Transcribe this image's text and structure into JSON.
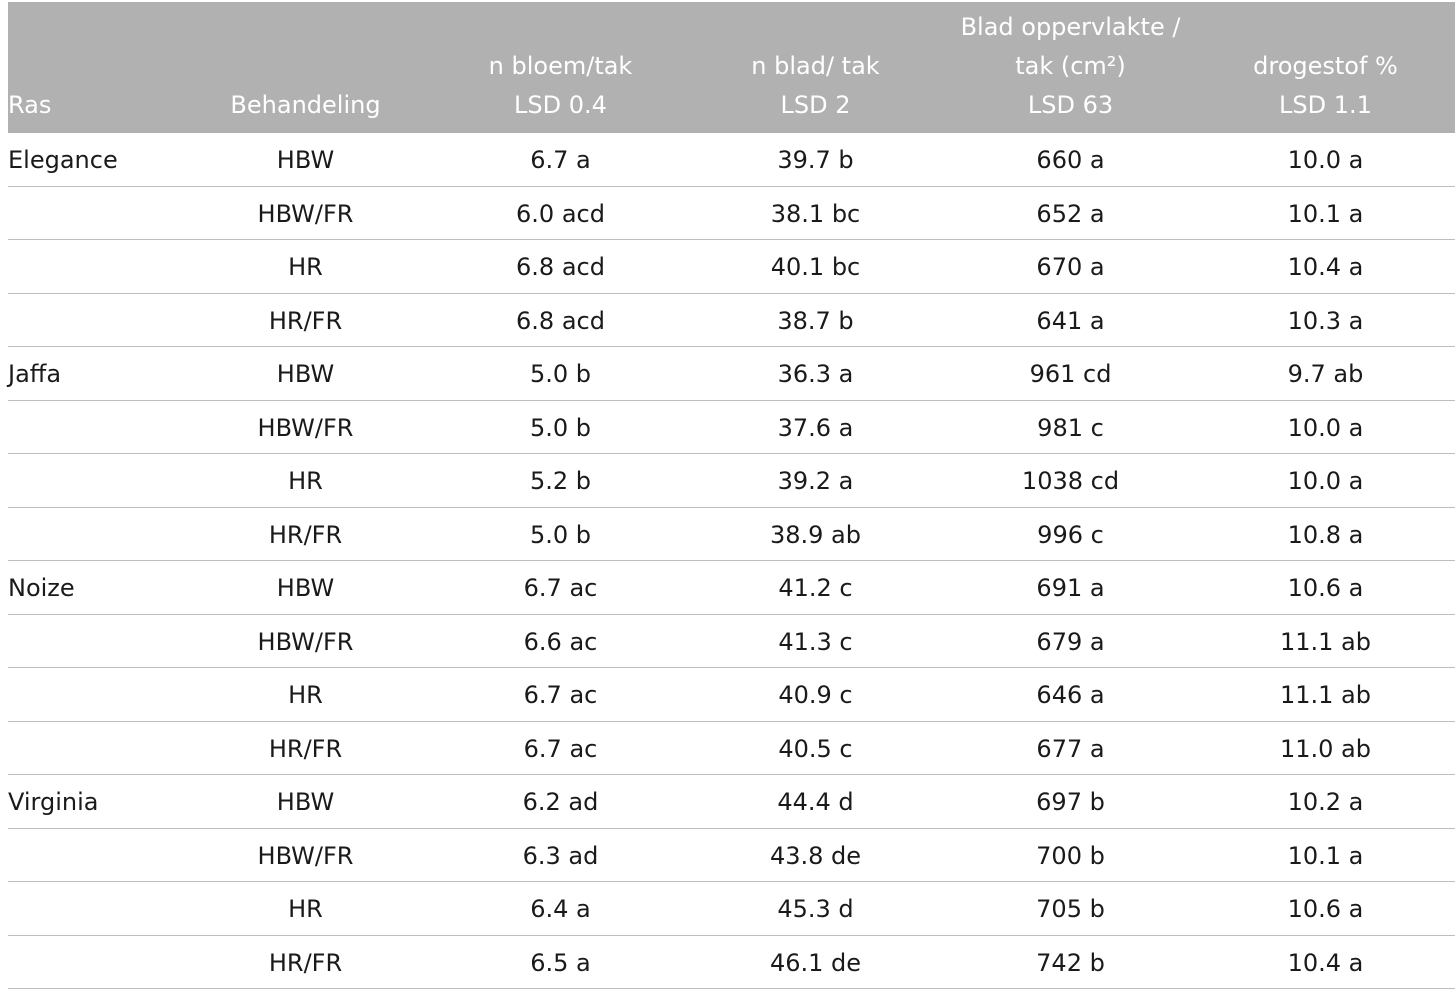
{
  "headers": [
    {
      "lines": [
        "Ras"
      ]
    },
    {
      "lines": [
        "Behandeling"
      ]
    },
    {
      "lines": [
        "n bloem/tak",
        "LSD 0.4"
      ]
    },
    {
      "lines": [
        "n blad/ tak",
        "LSD 2"
      ]
    },
    {
      "lines": [
        "Blad oppervlakte /",
        "tak (cm²)",
        "LSD 63"
      ]
    },
    {
      "lines": [
        "drogestof %",
        "LSD 1.1"
      ]
    }
  ],
  "rows": [
    [
      "Elegance",
      "HBW",
      "6.7 a",
      "39.7 b",
      "660 a",
      "10.0 a"
    ],
    [
      "",
      "HBW/FR",
      "6.0 acd",
      "38.1 bc",
      "652 a",
      "10.1 a"
    ],
    [
      "",
      "HR",
      "6.8 acd",
      "40.1 bc",
      "670 a",
      "10.4 a"
    ],
    [
      "",
      "HR/FR",
      "6.8 acd",
      "38.7 b",
      "641 a",
      "10.3 a"
    ],
    [
      "Jaffa",
      "HBW",
      "5.0 b",
      "36.3 a",
      "961 cd",
      "9.7 ab"
    ],
    [
      "",
      "HBW/FR",
      "5.0 b",
      "37.6 a",
      "981 c",
      "10.0 a"
    ],
    [
      "",
      "HR",
      "5.2 b",
      "39.2 a",
      "1038 cd",
      "10.0 a"
    ],
    [
      "",
      "HR/FR",
      "5.0 b",
      "38.9 ab",
      "996 c",
      "10.8 a"
    ],
    [
      "Noize",
      "HBW",
      "6.7 ac",
      "41.2 c",
      "691 a",
      "10.6 a"
    ],
    [
      "",
      "HBW/FR",
      "6.6 ac",
      "41.3 c",
      "679 a",
      "11.1 ab"
    ],
    [
      "",
      "HR",
      "6.7 ac",
      "40.9 c",
      "646 a",
      "11.1 ab"
    ],
    [
      "",
      "HR/FR",
      "6.7 ac",
      "40.5 c",
      "677 a",
      "11.0 ab"
    ],
    [
      "Virginia",
      "HBW",
      "6.2 ad",
      "44.4 d",
      "697 b",
      "10.2 a"
    ],
    [
      "",
      "HBW/FR",
      "6.3 ad",
      "43.8 de",
      "700 b",
      "10.1 a"
    ],
    [
      "",
      "HR",
      "6.4 a",
      "45.3 d",
      "705 b",
      "10.6 a"
    ],
    [
      "",
      "HR/FR",
      "6.5 a",
      "46.1 de",
      "742 b",
      "10.4 a"
    ]
  ]
}
